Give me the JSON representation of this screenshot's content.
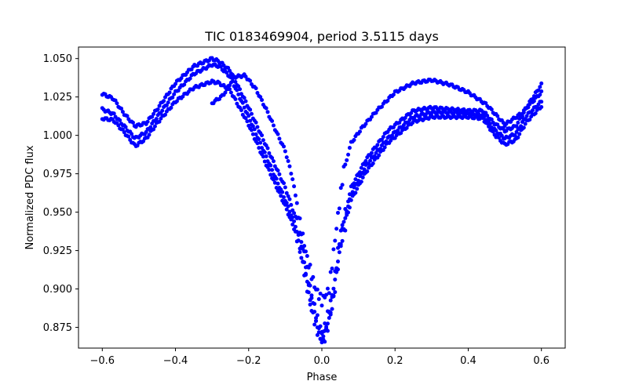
{
  "chart_data": {
    "type": "scatter",
    "title": "TIC 0183469904, period 3.5115 days",
    "xlabel": "Phase",
    "ylabel": "Normalized PDC flux",
    "xlim": [
      -0.665,
      0.665
    ],
    "ylim": [
      0.8615,
      1.0575
    ],
    "x_ticks": [
      -0.6,
      -0.4,
      -0.2,
      0.0,
      0.2,
      0.4,
      0.6
    ],
    "x_tick_labels": [
      "−0.6",
      "−0.4",
      "−0.2",
      "0.0",
      "0.2",
      "0.4",
      "0.6"
    ],
    "y_ticks": [
      0.875,
      0.9,
      0.925,
      0.95,
      0.975,
      1.0,
      1.025,
      1.05
    ],
    "y_tick_labels": [
      "0.875",
      "0.900",
      "0.925",
      "0.950",
      "0.975",
      "1.000",
      "1.025",
      "1.050"
    ],
    "grid": false,
    "legend": "none",
    "marker_color": "#0000ff",
    "phase_range": [
      -0.6,
      0.6
    ],
    "series": [
      {
        "x": [
          -0.6,
          -0.57,
          -0.54,
          -0.51,
          -0.48,
          -0.45,
          -0.4,
          -0.35,
          -0.3,
          -0.28,
          -0.25,
          -0.2,
          -0.15,
          -0.1,
          -0.07,
          -0.05,
          -0.03,
          -0.01,
          0.0,
          0.01,
          0.03,
          0.05,
          0.08,
          0.12,
          0.18,
          0.25,
          0.3,
          0.35,
          0.4,
          0.44,
          0.47,
          0.5,
          0.53,
          0.56,
          0.6
        ],
        "y": [
          1.027,
          1.024,
          1.014,
          1.006,
          1.008,
          1.017,
          1.034,
          1.045,
          1.05,
          1.048,
          1.042,
          1.018,
          0.992,
          0.966,
          0.945,
          0.925,
          0.898,
          0.878,
          0.872,
          0.876,
          0.898,
          0.935,
          0.966,
          0.984,
          1.003,
          1.016,
          1.018,
          1.017,
          1.016,
          1.016,
          1.008,
          1.003,
          1.006,
          1.018,
          1.028
        ]
      },
      {
        "x": [
          -0.6,
          -0.57,
          -0.54,
          -0.51,
          -0.48,
          -0.45,
          -0.4,
          -0.35,
          -0.3,
          -0.28,
          -0.25,
          -0.2,
          -0.15,
          -0.1,
          -0.07,
          -0.05,
          -0.03,
          -0.01,
          0.0,
          0.01,
          0.03,
          0.05,
          0.08,
          0.12,
          0.18,
          0.25,
          0.3,
          0.35,
          0.4,
          0.44,
          0.47,
          0.5,
          0.53,
          0.56,
          0.6
        ],
        "y": [
          1.017,
          1.014,
          1.006,
          0.998,
          1.002,
          1.012,
          1.028,
          1.04,
          1.046,
          1.045,
          1.038,
          1.012,
          0.985,
          0.958,
          0.94,
          0.918,
          0.893,
          0.874,
          0.868,
          0.872,
          0.894,
          0.93,
          0.962,
          0.98,
          0.998,
          1.012,
          1.015,
          1.015,
          1.014,
          1.013,
          1.004,
          0.998,
          1.001,
          1.013,
          1.022
        ]
      },
      {
        "x": [
          -0.6,
          -0.57,
          -0.54,
          -0.51,
          -0.48,
          -0.45,
          -0.4,
          -0.35,
          -0.3,
          -0.28,
          -0.25,
          -0.2,
          -0.15,
          -0.1,
          -0.07,
          -0.05,
          -0.03,
          -0.01,
          0.0,
          0.01,
          0.03,
          0.05,
          0.08,
          0.12,
          0.18,
          0.25,
          0.3,
          0.35,
          0.4,
          0.44,
          0.47,
          0.5,
          0.53,
          0.56,
          0.6
        ],
        "y": [
          1.011,
          1.01,
          1.002,
          0.993,
          0.998,
          1.008,
          1.022,
          1.031,
          1.035,
          1.034,
          1.029,
          1.007,
          0.98,
          0.954,
          0.936,
          0.914,
          0.888,
          0.871,
          0.866,
          0.869,
          0.89,
          0.926,
          0.958,
          0.976,
          0.995,
          1.009,
          1.012,
          1.012,
          1.012,
          1.011,
          1.001,
          0.994,
          0.997,
          1.009,
          1.019
        ]
      },
      {
        "x": [
          -0.3,
          -0.27,
          -0.24,
          -0.21,
          -0.18,
          -0.15,
          -0.12,
          -0.1,
          -0.08,
          -0.06,
          -0.04,
          -0.02,
          0.0,
          0.02,
          0.04,
          0.06,
          0.08,
          0.11,
          0.15,
          0.2,
          0.25,
          0.3,
          0.35,
          0.4,
          0.45,
          0.5,
          0.55,
          0.6
        ],
        "y": [
          1.021,
          1.026,
          1.038,
          1.039,
          1.03,
          1.016,
          1.0,
          0.99,
          0.972,
          0.943,
          0.92,
          0.902,
          0.892,
          0.9,
          0.94,
          0.978,
          0.995,
          1.005,
          1.016,
          1.028,
          1.034,
          1.036,
          1.033,
          1.028,
          1.02,
          1.007,
          1.015,
          1.033
        ]
      }
    ]
  }
}
